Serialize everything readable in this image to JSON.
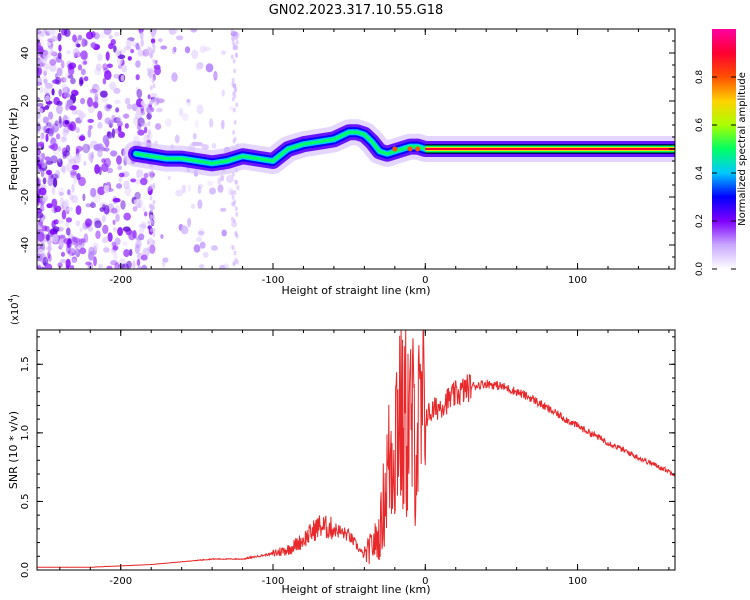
{
  "title": "GN02.2023.317.10.55.G18",
  "chart_data": [
    {
      "type": "heatmap",
      "xlabel": "Height of straight line (km)",
      "ylabel": "Frequency (Hz)",
      "xlim": [
        -255,
        164
      ],
      "ylim": [
        -50,
        50
      ],
      "xticks": [
        -200,
        -100,
        0,
        100
      ],
      "yticks": [
        -40,
        -20,
        0,
        20,
        40
      ],
      "colorbar": {
        "label": "Normalized spectral amplitude",
        "range": [
          0,
          1
        ],
        "ticks": [
          "0.0",
          "0.2",
          "0.4",
          "0.6",
          "0.8"
        ],
        "colors": [
          "#ffffff",
          "#c9a8ff",
          "#7f00ff",
          "#0000ff",
          "#00c8ff",
          "#00ff64",
          "#aaff00",
          "#ffd200",
          "#ff5000",
          "#ff0032",
          "#ff00a0"
        ]
      },
      "ridge": {
        "x": [
          -190,
          -180,
          -170,
          -160,
          -150,
          -140,
          -130,
          -120,
          -110,
          -100,
          -90,
          -80,
          -70,
          -60,
          -50,
          -45,
          -40,
          -35,
          -30,
          -25,
          -20,
          -15,
          -10,
          -5,
          0,
          50,
          100,
          164
        ],
        "y": [
          -2,
          -3,
          -4,
          -4,
          -5,
          -6,
          -5,
          -3,
          -4,
          -5,
          0,
          2,
          3,
          4,
          7,
          7,
          6,
          3,
          -1,
          -2,
          -1,
          0,
          1,
          1,
          0,
          0,
          0,
          0
        ]
      }
    },
    {
      "type": "line",
      "xlabel": "Height of straight line (km)",
      "ylabel": "SNR (10 * v/v)",
      "yscale_label": "(x10",
      "yscale_exp": "4",
      "xlim": [
        -255,
        164
      ],
      "ylim": [
        0,
        1.75
      ],
      "xticks": [
        -200,
        -100,
        0,
        100
      ],
      "yticks": [
        "0.0",
        "0.5",
        "1.0",
        "1.5"
      ],
      "yticks_values": [
        0,
        0.5,
        1.0,
        1.5
      ],
      "color": "#e8282a",
      "x": [
        -255,
        -220,
        -200,
        -180,
        -160,
        -140,
        -120,
        -100,
        -90,
        -80,
        -70,
        -60,
        -50,
        -40,
        -30,
        -25,
        -20,
        -17,
        -15,
        -12,
        -10,
        -5,
        0,
        10,
        20,
        30,
        40,
        50,
        60,
        70,
        80,
        100,
        120,
        140,
        164
      ],
      "y": [
        0.02,
        0.02,
        0.03,
        0.04,
        0.06,
        0.08,
        0.08,
        0.12,
        0.15,
        0.22,
        0.32,
        0.3,
        0.25,
        0.1,
        0.25,
        0.7,
        1.0,
        1.25,
        1.0,
        1.1,
        1.05,
        1.0,
        1.12,
        1.2,
        1.28,
        1.34,
        1.36,
        1.34,
        1.3,
        1.25,
        1.18,
        1.05,
        0.93,
        0.82,
        0.7
      ]
    }
  ]
}
